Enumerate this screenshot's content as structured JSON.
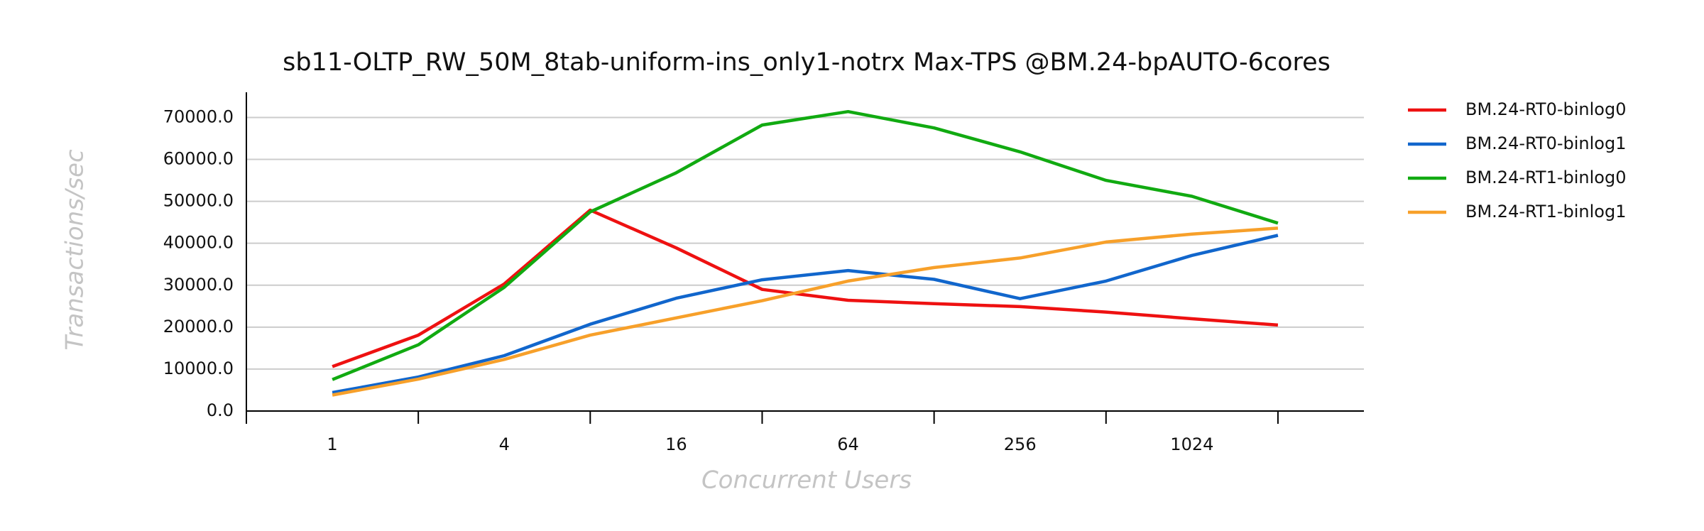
{
  "chart_data": {
    "type": "line",
    "title": "sb11-OLTP_RW_50M_8tab-uniform-ins_only1-notrx Max-TPS @BM.24-bpAUTO-6cores",
    "xlabel": "Concurrent Users",
    "ylabel": "Transactions/sec",
    "x": [
      1,
      2,
      4,
      8,
      16,
      32,
      64,
      128,
      256,
      512,
      1024,
      2048
    ],
    "xscale": "log2",
    "xlim": [
      0.5,
      4096
    ],
    "xticks": [
      1,
      4,
      16,
      64,
      256,
      1024
    ],
    "xminorticks": [
      0.5,
      2,
      8,
      32,
      128,
      512,
      2048
    ],
    "ylim": [
      0,
      76000
    ],
    "yticks": [
      {
        "value": 0,
        "label": "0.0"
      },
      {
        "value": 10000,
        "label": "10000.0"
      },
      {
        "value": 20000,
        "label": "20000.0"
      },
      {
        "value": 30000,
        "label": "30000.0"
      },
      {
        "value": 40000,
        "label": "40000.0"
      },
      {
        "value": 50000,
        "label": "50000.0"
      },
      {
        "value": 60000,
        "label": "60000.0"
      },
      {
        "value": 70000,
        "label": "70000.0"
      }
    ],
    "grid": true,
    "legend": "right",
    "series": [
      {
        "name": "BM.24-RT0-binlog0",
        "color": "#ee1111",
        "values": [
          10600,
          18100,
          30300,
          47900,
          38900,
          29000,
          26400,
          25600,
          24900,
          23600,
          22000,
          20500
        ]
      },
      {
        "name": "BM.24-RT0-binlog1",
        "color": "#1166cc",
        "values": [
          4400,
          8100,
          13200,
          20700,
          26900,
          31300,
          33500,
          31400,
          26800,
          31000,
          37100,
          41900
        ]
      },
      {
        "name": "BM.24-RT1-binlog0",
        "color": "#11aa11",
        "values": [
          7500,
          15800,
          29500,
          47500,
          56800,
          68200,
          71400,
          67500,
          61800,
          55000,
          51200,
          44800
        ]
      },
      {
        "name": "BM.24-RT1-binlog1",
        "color": "#f7a02a",
        "values": [
          3800,
          7600,
          12300,
          18100,
          22200,
          26300,
          31000,
          34200,
          36500,
          40300,
          42200,
          43600
        ]
      }
    ]
  }
}
